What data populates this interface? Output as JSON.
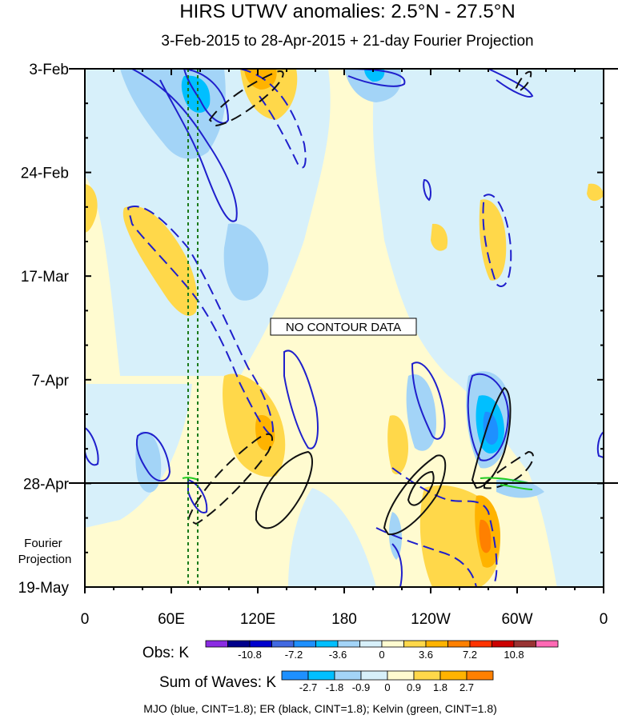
{
  "chart_data": {
    "type": "heatmap",
    "title": "HIRS UTWV anomalies: 2.5°N - 27.5°N",
    "subtitle": "3-Feb-2015 to 28-Apr-2015 + 21-day Fourier Projection",
    "x_tick_labels": [
      "0",
      "60E",
      "120E",
      "180",
      "120W",
      "60W",
      "0"
    ],
    "x_range_deg_east": [
      0,
      360
    ],
    "y_tick_labels": [
      "3-Feb",
      "24-Feb",
      "17-Mar",
      "7-Apr",
      "28-Apr",
      "19-May"
    ],
    "y_axis_direction": "time increases downward",
    "forecast_start": "28-Apr",
    "projection_label": "Fourier\nProjection",
    "no_data_label": "NO CONTOUR DATA",
    "obs_colorbar": {
      "label": "Obs: K",
      "tick_labels": [
        "-10.8",
        "-7.2",
        "-3.6",
        "0",
        "3.6",
        "7.2",
        "10.8"
      ],
      "colors": [
        "#8a2be2",
        "#00008b",
        "#0000cd",
        "#4169e1",
        "#1e90ff",
        "#00bfff",
        "#a3d4f7",
        "#d7f0fa",
        "#fffbd0",
        "#ffd84a",
        "#ffb300",
        "#ff8000",
        "#ff3300",
        "#cc0000",
        "#993333",
        "#ff69b4"
      ]
    },
    "waves_colorbar": {
      "label": "Sum of Waves: K",
      "tick_labels": [
        "-2.7",
        "-1.8",
        "-0.9",
        "0",
        "0.9",
        "1.8",
        "2.7"
      ],
      "colors": [
        "#1e90ff",
        "#00bfff",
        "#a3d4f7",
        "#d7f0fa",
        "#fffbd0",
        "#ffd84a",
        "#ffb300",
        "#ff8000"
      ]
    },
    "footer": "MJO (blue, CINT=1.8); ER (black, CINT=1.8); Kelvin (green, CINT=1.8)",
    "contour_colors": {
      "mjo": "#1f1fcc",
      "er": "#111111",
      "kelvin": "#22cc22"
    },
    "grid": false
  }
}
